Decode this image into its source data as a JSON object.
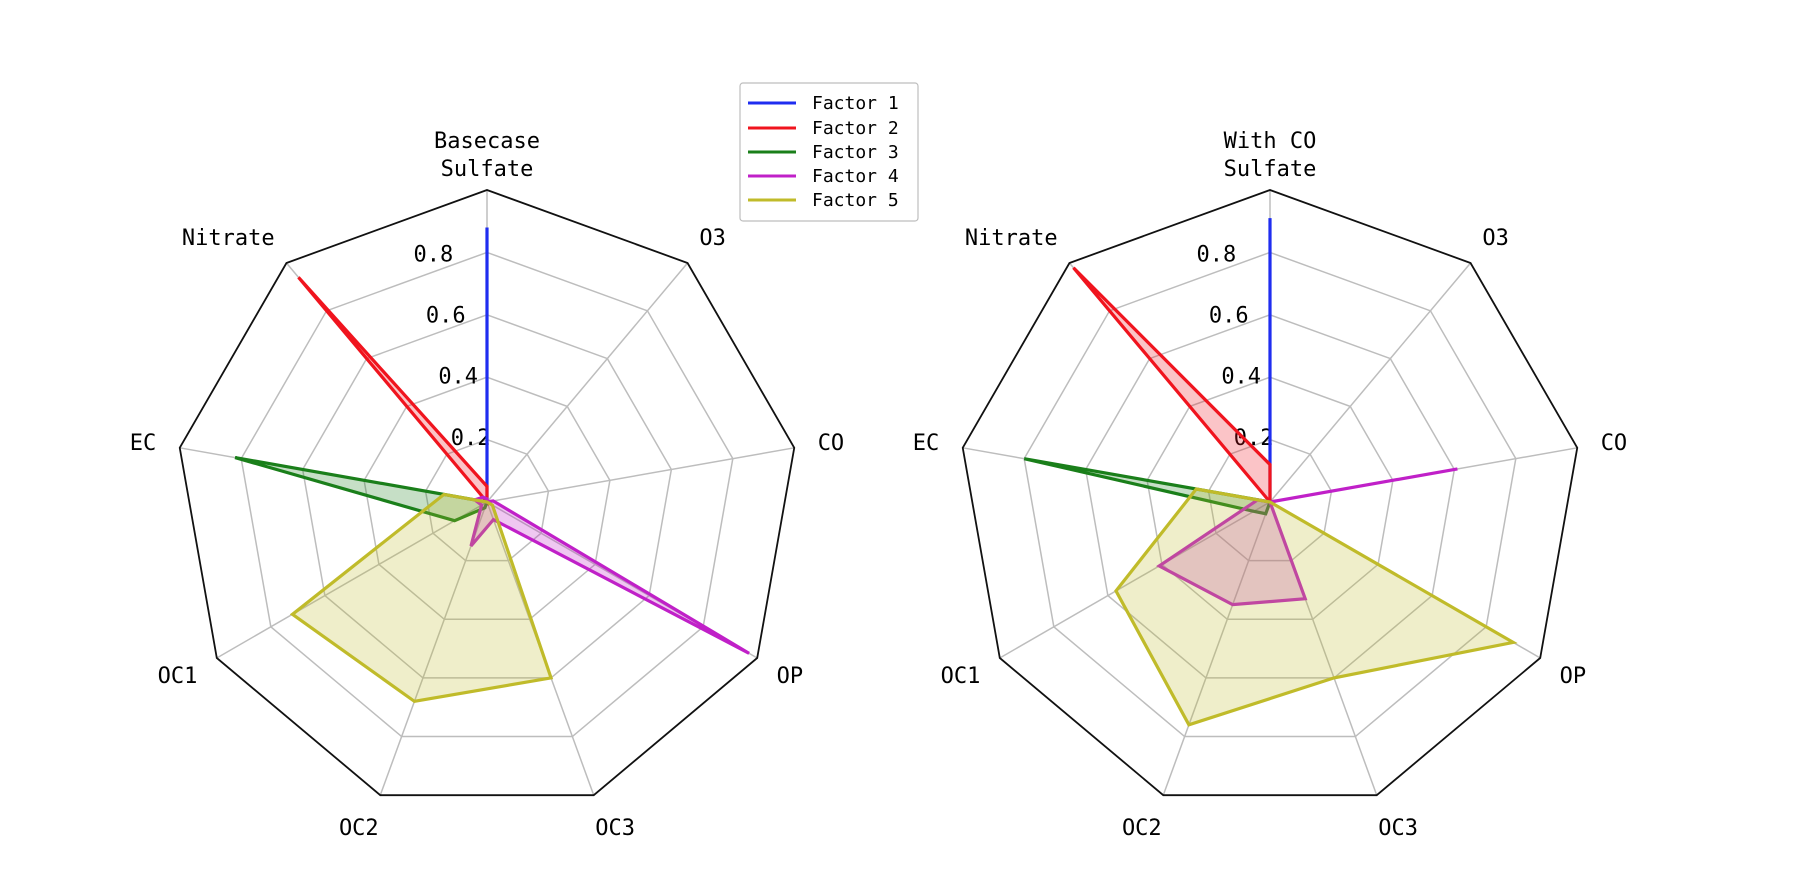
{
  "chart_data": {
    "type": "radar",
    "axes": [
      "Sulfate",
      "O3",
      "CO",
      "OP",
      "OC3",
      "OC2",
      "OC1",
      "EC",
      "Nitrate"
    ],
    "rlim": [
      0,
      1.0
    ],
    "rticks": [
      0.2,
      0.4,
      0.6,
      0.8
    ],
    "rtick_labels": [
      "0.2",
      "0.4",
      "0.6",
      "0.8"
    ],
    "legend": {
      "placement": "top-center",
      "entries": [
        {
          "name": "Factor 1",
          "color": "#1f2df0"
        },
        {
          "name": "Factor 2",
          "color": "#f0141e"
        },
        {
          "name": "Factor 3",
          "color": "#1a7f1a"
        },
        {
          "name": "Factor 4",
          "color": "#c020c8"
        },
        {
          "name": "Factor 5",
          "color": "#c0bb2a"
        }
      ]
    },
    "panels": [
      {
        "title": "Basecase",
        "series": [
          {
            "name": "Factor 1",
            "values": [
              0.88,
              0.0,
              0.0,
              0.0,
              0.0,
              0.0,
              0.0,
              0.0,
              0.0
            ]
          },
          {
            "name": "Factor 2",
            "values": [
              0.05,
              0.0,
              0.0,
              0.0,
              0.0,
              0.0,
              0.0,
              0.0,
              0.94
            ]
          },
          {
            "name": "Factor 3",
            "values": [
              0.0,
              0.0,
              0.0,
              0.0,
              0.0,
              0.02,
              0.12,
              0.82,
              0.0
            ]
          },
          {
            "name": "Factor 4",
            "values": [
              0.01,
              0.0,
              0.02,
              0.97,
              0.06,
              0.15,
              0.02,
              0.04,
              0.02
            ]
          },
          {
            "name": "Factor 5",
            "values": [
              0.0,
              0.0,
              0.0,
              0.02,
              0.6,
              0.68,
              0.72,
              0.14,
              0.0
            ]
          }
        ]
      },
      {
        "title": "With CO",
        "series": [
          {
            "name": "Factor 1",
            "values": [
              0.91,
              0.0,
              0.0,
              0.0,
              0.0,
              0.0,
              0.0,
              0.0,
              0.0
            ]
          },
          {
            "name": "Factor 2",
            "values": [
              0.12,
              0.0,
              0.02,
              0.0,
              0.0,
              0.0,
              0.0,
              0.0,
              0.98
            ]
          },
          {
            "name": "Factor 3",
            "values": [
              0.0,
              0.0,
              0.0,
              0.0,
              0.0,
              0.04,
              0.06,
              0.8,
              0.0
            ]
          },
          {
            "name": "Factor 4",
            "values": [
              0.0,
              0.0,
              0.61,
              0.0,
              0.33,
              0.35,
              0.41,
              0.04,
              0.0
            ]
          },
          {
            "name": "Factor 5",
            "values": [
              0.0,
              0.0,
              0.0,
              0.9,
              0.6,
              0.76,
              0.57,
              0.24,
              0.0
            ]
          }
        ]
      }
    ]
  }
}
